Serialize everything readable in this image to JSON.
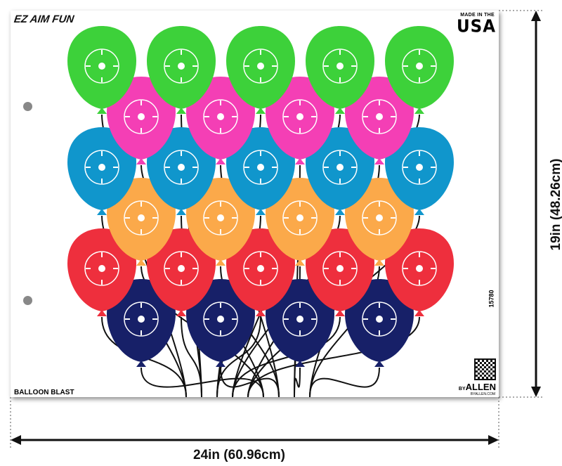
{
  "brand_logo": "EZ AIM FUN",
  "made_in": "MADE IN THE",
  "country": "USA",
  "product_code": "15780",
  "target_name": "BALLOON BLAST",
  "maker": "ALLEN",
  "maker_prefix": "BY",
  "maker_url": "BYALLEN.COM",
  "width_label": "24in (60.96cm)",
  "height_label": "19in (48.26cm)",
  "balloon_rows": [
    {
      "color": "#3dd13a",
      "count": 5
    },
    {
      "color": "#f43fb5",
      "count": 4
    },
    {
      "color": "#1096cc",
      "count": 5
    },
    {
      "color": "#fba94a",
      "count": 4
    },
    {
      "color": "#ee2f3d",
      "count": 5
    },
    {
      "color": "#172068",
      "count": 4
    }
  ]
}
